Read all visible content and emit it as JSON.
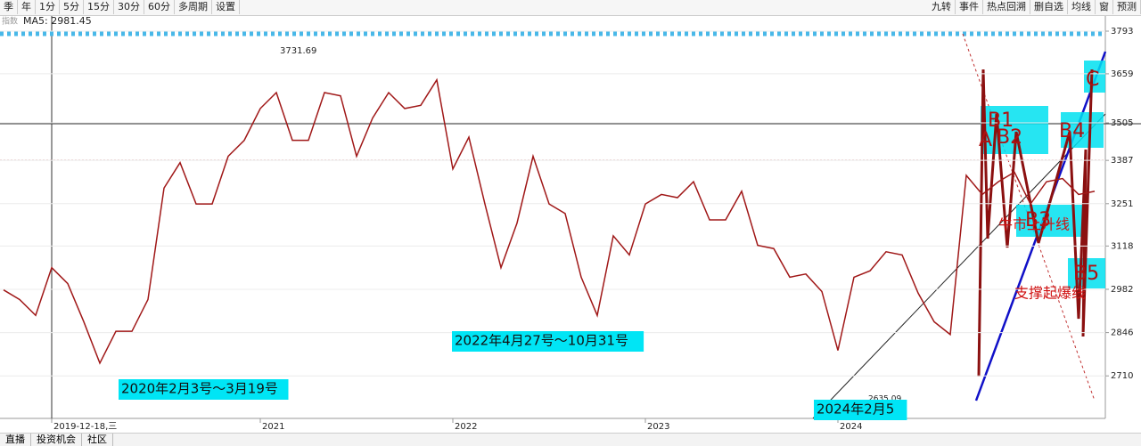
{
  "toolbar": {
    "left": [
      "季",
      "年",
      "1分",
      "5分",
      "15分",
      "30分",
      "60分",
      "多周期",
      "设置"
    ],
    "right": [
      "九转",
      "事件",
      "热点回溯",
      "删自选",
      "均线",
      "窗",
      "预测"
    ]
  },
  "header": {
    "label": "指数",
    "ma5": "MA5: 2981.45"
  },
  "bottom_tabs": [
    "直播",
    "投资机会",
    "社区"
  ],
  "chart_data": {
    "type": "line",
    "color": "#a01818",
    "grid": true,
    "categories": [
      null,
      null,
      null,
      "2019-12-18,三",
      null,
      null,
      null,
      null,
      null,
      null,
      null,
      null,
      null,
      null,
      null,
      null,
      "2021",
      null,
      null,
      null,
      null,
      null,
      null,
      null,
      null,
      null,
      null,
      null,
      "2022",
      null,
      null,
      null,
      null,
      null,
      null,
      null,
      null,
      null,
      null,
      null,
      "2023",
      null,
      null,
      null,
      null,
      null,
      null,
      null,
      null,
      null,
      null,
      null,
      "2024",
      null,
      null,
      null,
      null,
      null,
      null,
      null,
      null,
      null,
      null,
      null,
      null,
      null,
      null,
      null,
      null
    ],
    "values": [
      2980,
      2950,
      2900,
      3050,
      3000,
      2880,
      2750,
      2850,
      2850,
      2950,
      3300,
      3380,
      3250,
      3250,
      3400,
      3450,
      3550,
      3600,
      3450,
      3450,
      3600,
      3590,
      3400,
      3520,
      3600,
      3550,
      3560,
      3640,
      3360,
      3460,
      3250,
      3050,
      3190,
      3400,
      3250,
      3220,
      3020,
      2900,
      3150,
      3090,
      3250,
      3280,
      3270,
      3320,
      3200,
      3200,
      3290,
      3120,
      3110,
      3020,
      3030,
      2975,
      2790,
      3020,
      3040,
      3100,
      3090,
      2970,
      2880,
      2840,
      3340,
      3280,
      3320,
      3350,
      3250,
      3320,
      3330,
      3280,
      3290
    ],
    "ylim": [
      2582,
      3793
    ],
    "yticks": [
      3793,
      3659,
      3505,
      3387,
      3251,
      3118,
      2982,
      2846,
      2710
    ],
    "annotations": [
      "3731.69",
      "2635.09",
      "2020年2月3号～3月19号",
      "2022年4月27号～10月31号",
      "2024年2月5",
      "A",
      "B1",
      "B2",
      "B3",
      "B4",
      "B5",
      "C",
      "牛市上升线",
      "支撑起爆线"
    ]
  }
}
